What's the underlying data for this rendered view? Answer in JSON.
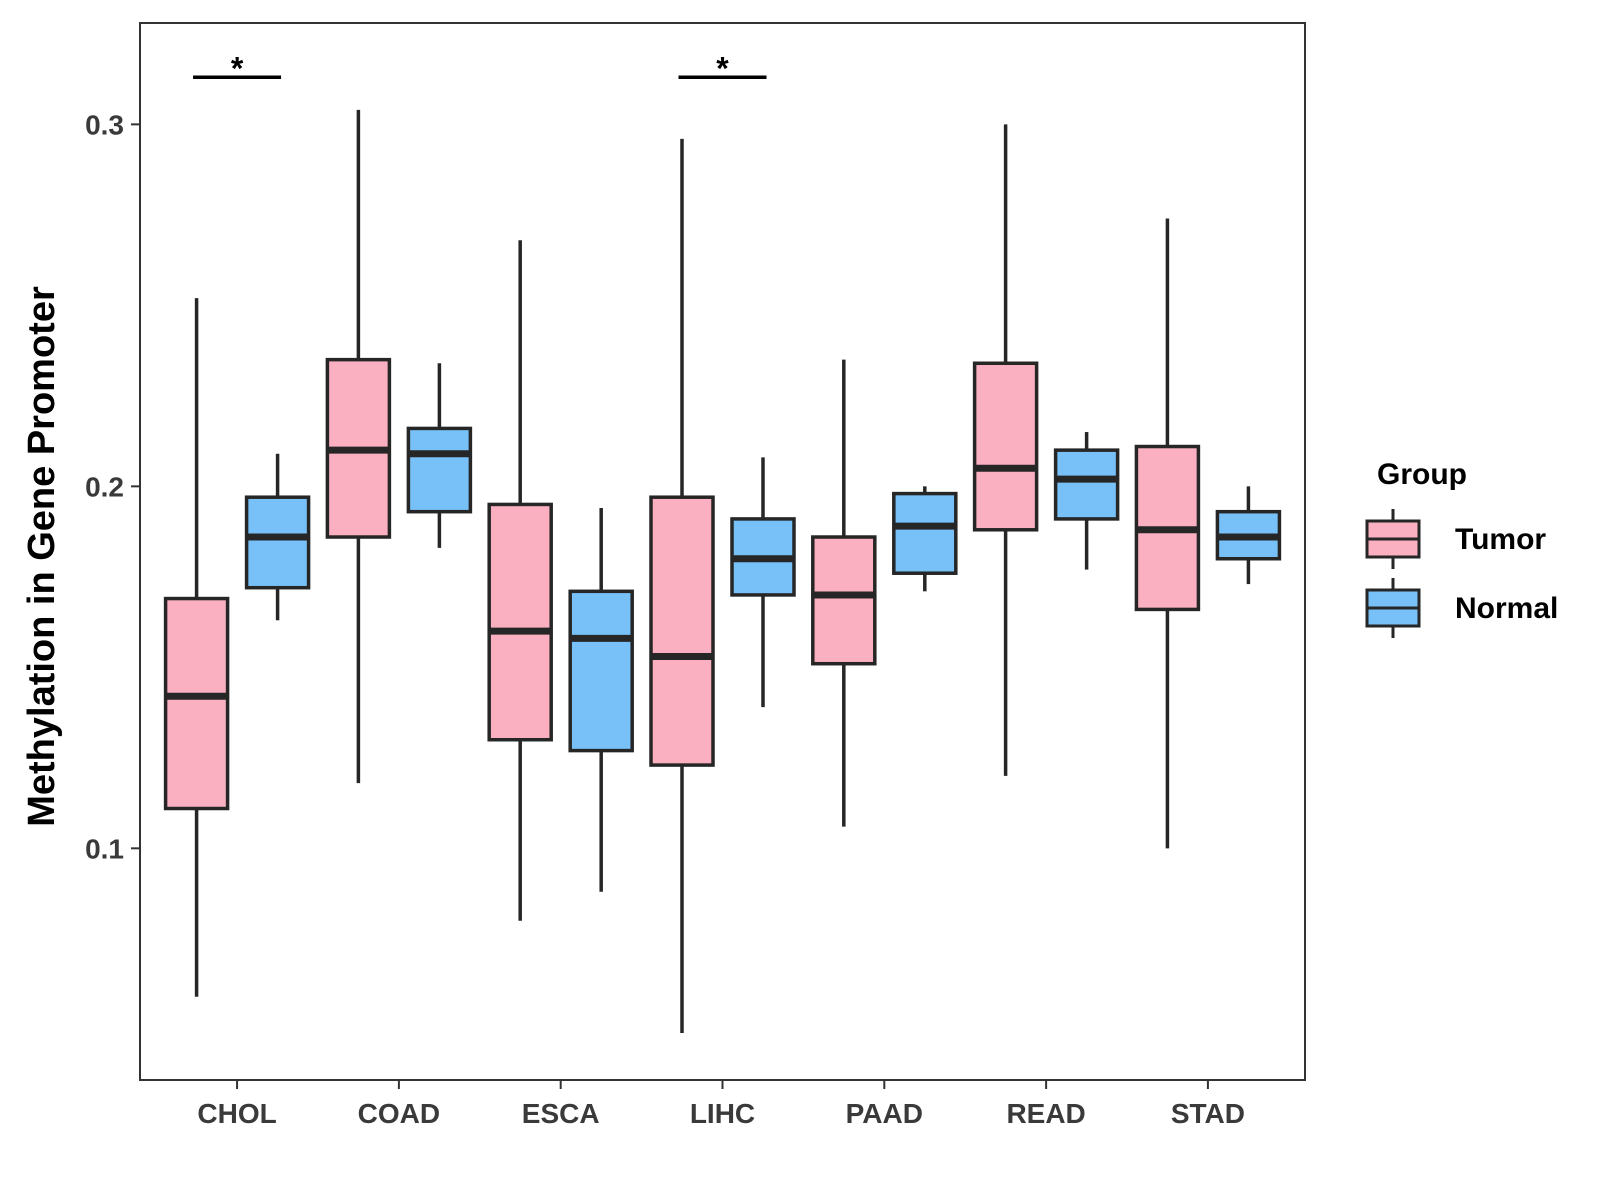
{
  "chart_data": {
    "type": "boxplot",
    "title": "",
    "xlabel": "",
    "ylabel": "Methylation in Gene Promoter",
    "ylim": [
      0.036,
      0.328
    ],
    "yticks": [
      {
        "value": 0.1,
        "label": "0.1"
      },
      {
        "value": 0.2,
        "label": "0.2"
      },
      {
        "value": 0.3,
        "label": "0.3"
      }
    ],
    "grid": false,
    "categories": [
      "CHOL",
      "COAD",
      "ESCA",
      "LIHC",
      "PAAD",
      "READ",
      "STAD"
    ],
    "legend": {
      "title": "Group",
      "placement": "right",
      "items": [
        {
          "name": "Tumor",
          "color": "#fbb0c1"
        },
        {
          "name": "Normal",
          "color": "#77c1f8"
        }
      ]
    },
    "series": [
      {
        "name": "Tumor",
        "color": "#fbb0c1",
        "boxes": [
          {
            "category": "CHOL",
            "min": 0.059,
            "q1": 0.111,
            "median": 0.142,
            "q3": 0.169,
            "max": 0.252
          },
          {
            "category": "COAD",
            "min": 0.118,
            "q1": 0.186,
            "median": 0.21,
            "q3": 0.235,
            "max": 0.304
          },
          {
            "category": "ESCA",
            "min": 0.08,
            "q1": 0.13,
            "median": 0.16,
            "q3": 0.195,
            "max": 0.268
          },
          {
            "category": "LIHC",
            "min": 0.049,
            "q1": 0.123,
            "median": 0.153,
            "q3": 0.197,
            "max": 0.296
          },
          {
            "category": "PAAD",
            "min": 0.106,
            "q1": 0.151,
            "median": 0.17,
            "q3": 0.186,
            "max": 0.235
          },
          {
            "category": "READ",
            "min": 0.12,
            "q1": 0.188,
            "median": 0.205,
            "q3": 0.234,
            "max": 0.3
          },
          {
            "category": "STAD",
            "min": 0.1,
            "q1": 0.166,
            "median": 0.188,
            "q3": 0.211,
            "max": 0.274
          }
        ]
      },
      {
        "name": "Normal",
        "color": "#77c1f8",
        "boxes": [
          {
            "category": "CHOL",
            "min": 0.163,
            "q1": 0.172,
            "median": 0.186,
            "q3": 0.197,
            "max": 0.209
          },
          {
            "category": "COAD",
            "min": 0.183,
            "q1": 0.193,
            "median": 0.209,
            "q3": 0.216,
            "max": 0.234
          },
          {
            "category": "ESCA",
            "min": 0.088,
            "q1": 0.127,
            "median": 0.158,
            "q3": 0.171,
            "max": 0.194
          },
          {
            "category": "LIHC",
            "min": 0.139,
            "q1": 0.17,
            "median": 0.18,
            "q3": 0.191,
            "max": 0.208
          },
          {
            "category": "PAAD",
            "min": 0.171,
            "q1": 0.176,
            "median": 0.189,
            "q3": 0.198,
            "max": 0.2
          },
          {
            "category": "READ",
            "min": 0.177,
            "q1": 0.191,
            "median": 0.202,
            "q3": 0.21,
            "max": 0.215
          },
          {
            "category": "STAD",
            "min": 0.173,
            "q1": 0.18,
            "median": 0.186,
            "q3": 0.193,
            "max": 0.2
          }
        ]
      }
    ],
    "annotations": [
      {
        "category": "CHOL",
        "text": "*",
        "value": 0.313
      },
      {
        "category": "LIHC",
        "text": "*",
        "value": 0.313
      }
    ]
  }
}
